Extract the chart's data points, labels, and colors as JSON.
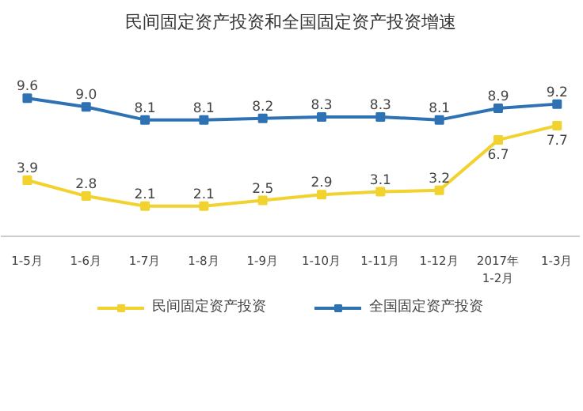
{
  "chart_data": {
    "type": "line",
    "title": "民间固定资产投资和全国固定资产投资增速",
    "categories": [
      "1-5月",
      "1-6月",
      "1-7月",
      "1-8月",
      "1-9月",
      "1-10月",
      "1-11月",
      "1-12月",
      "2017年\n1-2月",
      "1-3月"
    ],
    "series": [
      {
        "name": "民间固定资产投资",
        "color": "#f2d22e",
        "values": [
          3.9,
          2.8,
          2.1,
          2.1,
          2.5,
          2.9,
          3.1,
          3.2,
          6.7,
          7.7
        ],
        "value_labels": [
          "3.9",
          "2.8",
          "2.1",
          "2.1",
          "2.5",
          "2.9",
          "3.1",
          "3.2",
          "6.7",
          "7.7"
        ]
      },
      {
        "name": "全国固定资产投资",
        "color": "#2e72b4",
        "values": [
          9.6,
          9.0,
          8.1,
          8.1,
          8.2,
          8.3,
          8.3,
          8.1,
          8.9,
          9.2
        ],
        "value_labels": [
          "9.6",
          "9.0",
          "8.1",
          "8.1",
          "8.2",
          "8.3",
          "8.3",
          "8.1",
          "8.9",
          "9.2"
        ]
      }
    ],
    "marker": "square",
    "line_style": "solid",
    "legend": "bottom"
  }
}
